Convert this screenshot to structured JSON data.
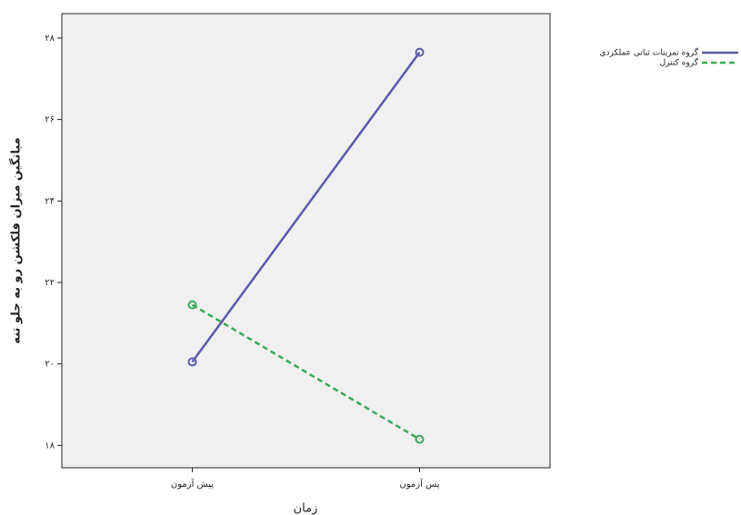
{
  "chart_data": {
    "type": "line",
    "categories": [
      "پیش آزمون",
      "پس آزمون"
    ],
    "series": [
      {
        "name": "گروه تمرینات ثباتی عملکردی",
        "color": "#5a5aa8",
        "dash": false,
        "values": [
          20.05,
          27.65
        ]
      },
      {
        "name": "گروه کنترل",
        "color": "#3aa85a",
        "dash": true,
        "values": [
          21.45,
          18.15
        ]
      }
    ],
    "x_label": "زمان",
    "y_label": "میانگین میزان فلکشن رو به جلو تنه",
    "ylim": [
      17.45,
      28.6
    ],
    "yticks": [
      {
        "value": 18,
        "label": "۱۸"
      },
      {
        "value": 20,
        "label": "۲۰"
      },
      {
        "value": 22,
        "label": "۲۲"
      },
      {
        "value": 24,
        "label": "۲۴"
      },
      {
        "value": 26,
        "label": "۲۶"
      },
      {
        "value": 28,
        "label": "۲۸"
      }
    ],
    "legend": "top-right"
  }
}
